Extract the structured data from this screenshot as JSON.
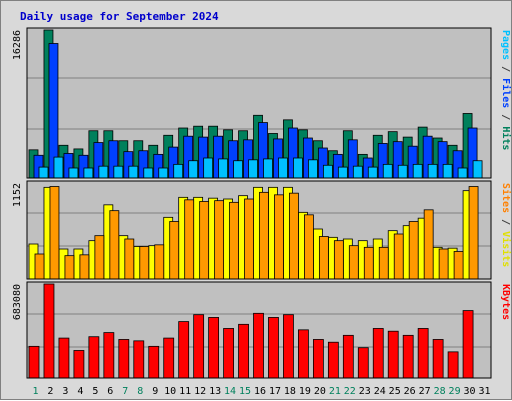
{
  "chart_data": {
    "type": "bar",
    "title": "Daily usage for September 2024",
    "categories": [
      "1",
      "2",
      "3",
      "4",
      "5",
      "6",
      "7",
      "8",
      "9",
      "10",
      "11",
      "12",
      "13",
      "14",
      "15",
      "16",
      "17",
      "18",
      "19",
      "20",
      "21",
      "22",
      "23",
      "24",
      "25",
      "26",
      "27",
      "28",
      "29",
      "30",
      "31"
    ],
    "weekend_days": [
      "1",
      "7",
      "8",
      "14",
      "15",
      "21",
      "22",
      "28",
      "29"
    ],
    "panels": [
      {
        "id": "top",
        "ymax_label": "16286",
        "ymax": 16286,
        "legend": [
          {
            "text": "Pages",
            "color": "#00c0ff"
          },
          {
            "text": " / ",
            "color": "#404040"
          },
          {
            "text": "Files",
            "color": "#0040ff"
          },
          {
            "text": " / ",
            "color": "#404040"
          },
          {
            "text": "Hits",
            "color": "#00805c"
          }
        ],
        "series": [
          {
            "name": "Hits",
            "color": "#00805c",
            "values": [
              3100,
              16286,
              3600,
              3200,
              5200,
              5200,
              4100,
              4100,
              3600,
              4700,
              5500,
              5700,
              5700,
              5300,
              5200,
              6900,
              4900,
              6400,
              5300,
              4100,
              3000,
              5200,
              2600,
              4700,
              5100,
              4500,
              5600,
              4400,
              3600,
              7100,
              0
            ]
          },
          {
            "name": "Files",
            "color": "#0040ff",
            "values": [
              2500,
              14800,
              2700,
              2500,
              3900,
              4100,
              2900,
              3000,
              2600,
              3400,
              4600,
              4500,
              4600,
              4100,
              4200,
              6100,
              4300,
              5500,
              4400,
              3300,
              2600,
              4200,
              2200,
              3800,
              4000,
              3500,
              4600,
              4000,
              3000,
              5500,
              0
            ]
          },
          {
            "name": "Pages",
            "color": "#00c0ff",
            "values": [
              1200,
              2300,
              1100,
              1100,
              1300,
              1300,
              1300,
              1100,
              1100,
              1500,
              1900,
              2200,
              2100,
              1900,
              2000,
              2100,
              2200,
              2200,
              2000,
              1400,
              1200,
              1300,
              1200,
              1500,
              1400,
              1500,
              1500,
              1500,
              1100,
              1900,
              0
            ]
          }
        ]
      },
      {
        "id": "middle",
        "ymax_label": "1152",
        "ymax": 1152,
        "legend": [
          {
            "text": "Sites",
            "color": "#ff8000"
          },
          {
            "text": " / ",
            "color": "#404040"
          },
          {
            "text": "Visits",
            "color": "#e0e000"
          }
        ],
        "series": [
          {
            "name": "Visits",
            "color": "#ffff00",
            "values": [
              420,
              1100,
              360,
              360,
              460,
              890,
              520,
              390,
              400,
              740,
              980,
              980,
              970,
              960,
              1000,
              1100,
              1100,
              1100,
              800,
              600,
              500,
              480,
              460,
              480,
              580,
              640,
              730,
              380,
              370,
              1060,
              0
            ]
          },
          {
            "name": "Sites",
            "color": "#ff9900",
            "values": [
              300,
              1110,
              280,
              290,
              520,
              820,
              480,
              390,
              410,
              690,
              950,
              930,
              940,
              920,
              960,
              1040,
              1010,
              1030,
              770,
              510,
              460,
              400,
              380,
              380,
              540,
              690,
              830,
              360,
              330,
              1110,
              0
            ]
          }
        ]
      },
      {
        "id": "bottom",
        "ymax_label": "683080",
        "ymax": 683080,
        "legend": [
          {
            "text": "KBytes",
            "color": "#ff0000"
          }
        ],
        "series": [
          {
            "name": "KBytes",
            "color": "#ff0000",
            "values": [
              230000,
              683080,
              290000,
              200000,
              300000,
              330000,
              280000,
              270000,
              230000,
              290000,
              410000,
              460000,
              440000,
              360000,
              390000,
              470000,
              440000,
              460000,
              350000,
              280000,
              260000,
              310000,
              220000,
              360000,
              340000,
              310000,
              360000,
              280000,
              190000,
              490000,
              0
            ]
          }
        ]
      }
    ],
    "grid": true,
    "legend_position": "right"
  }
}
